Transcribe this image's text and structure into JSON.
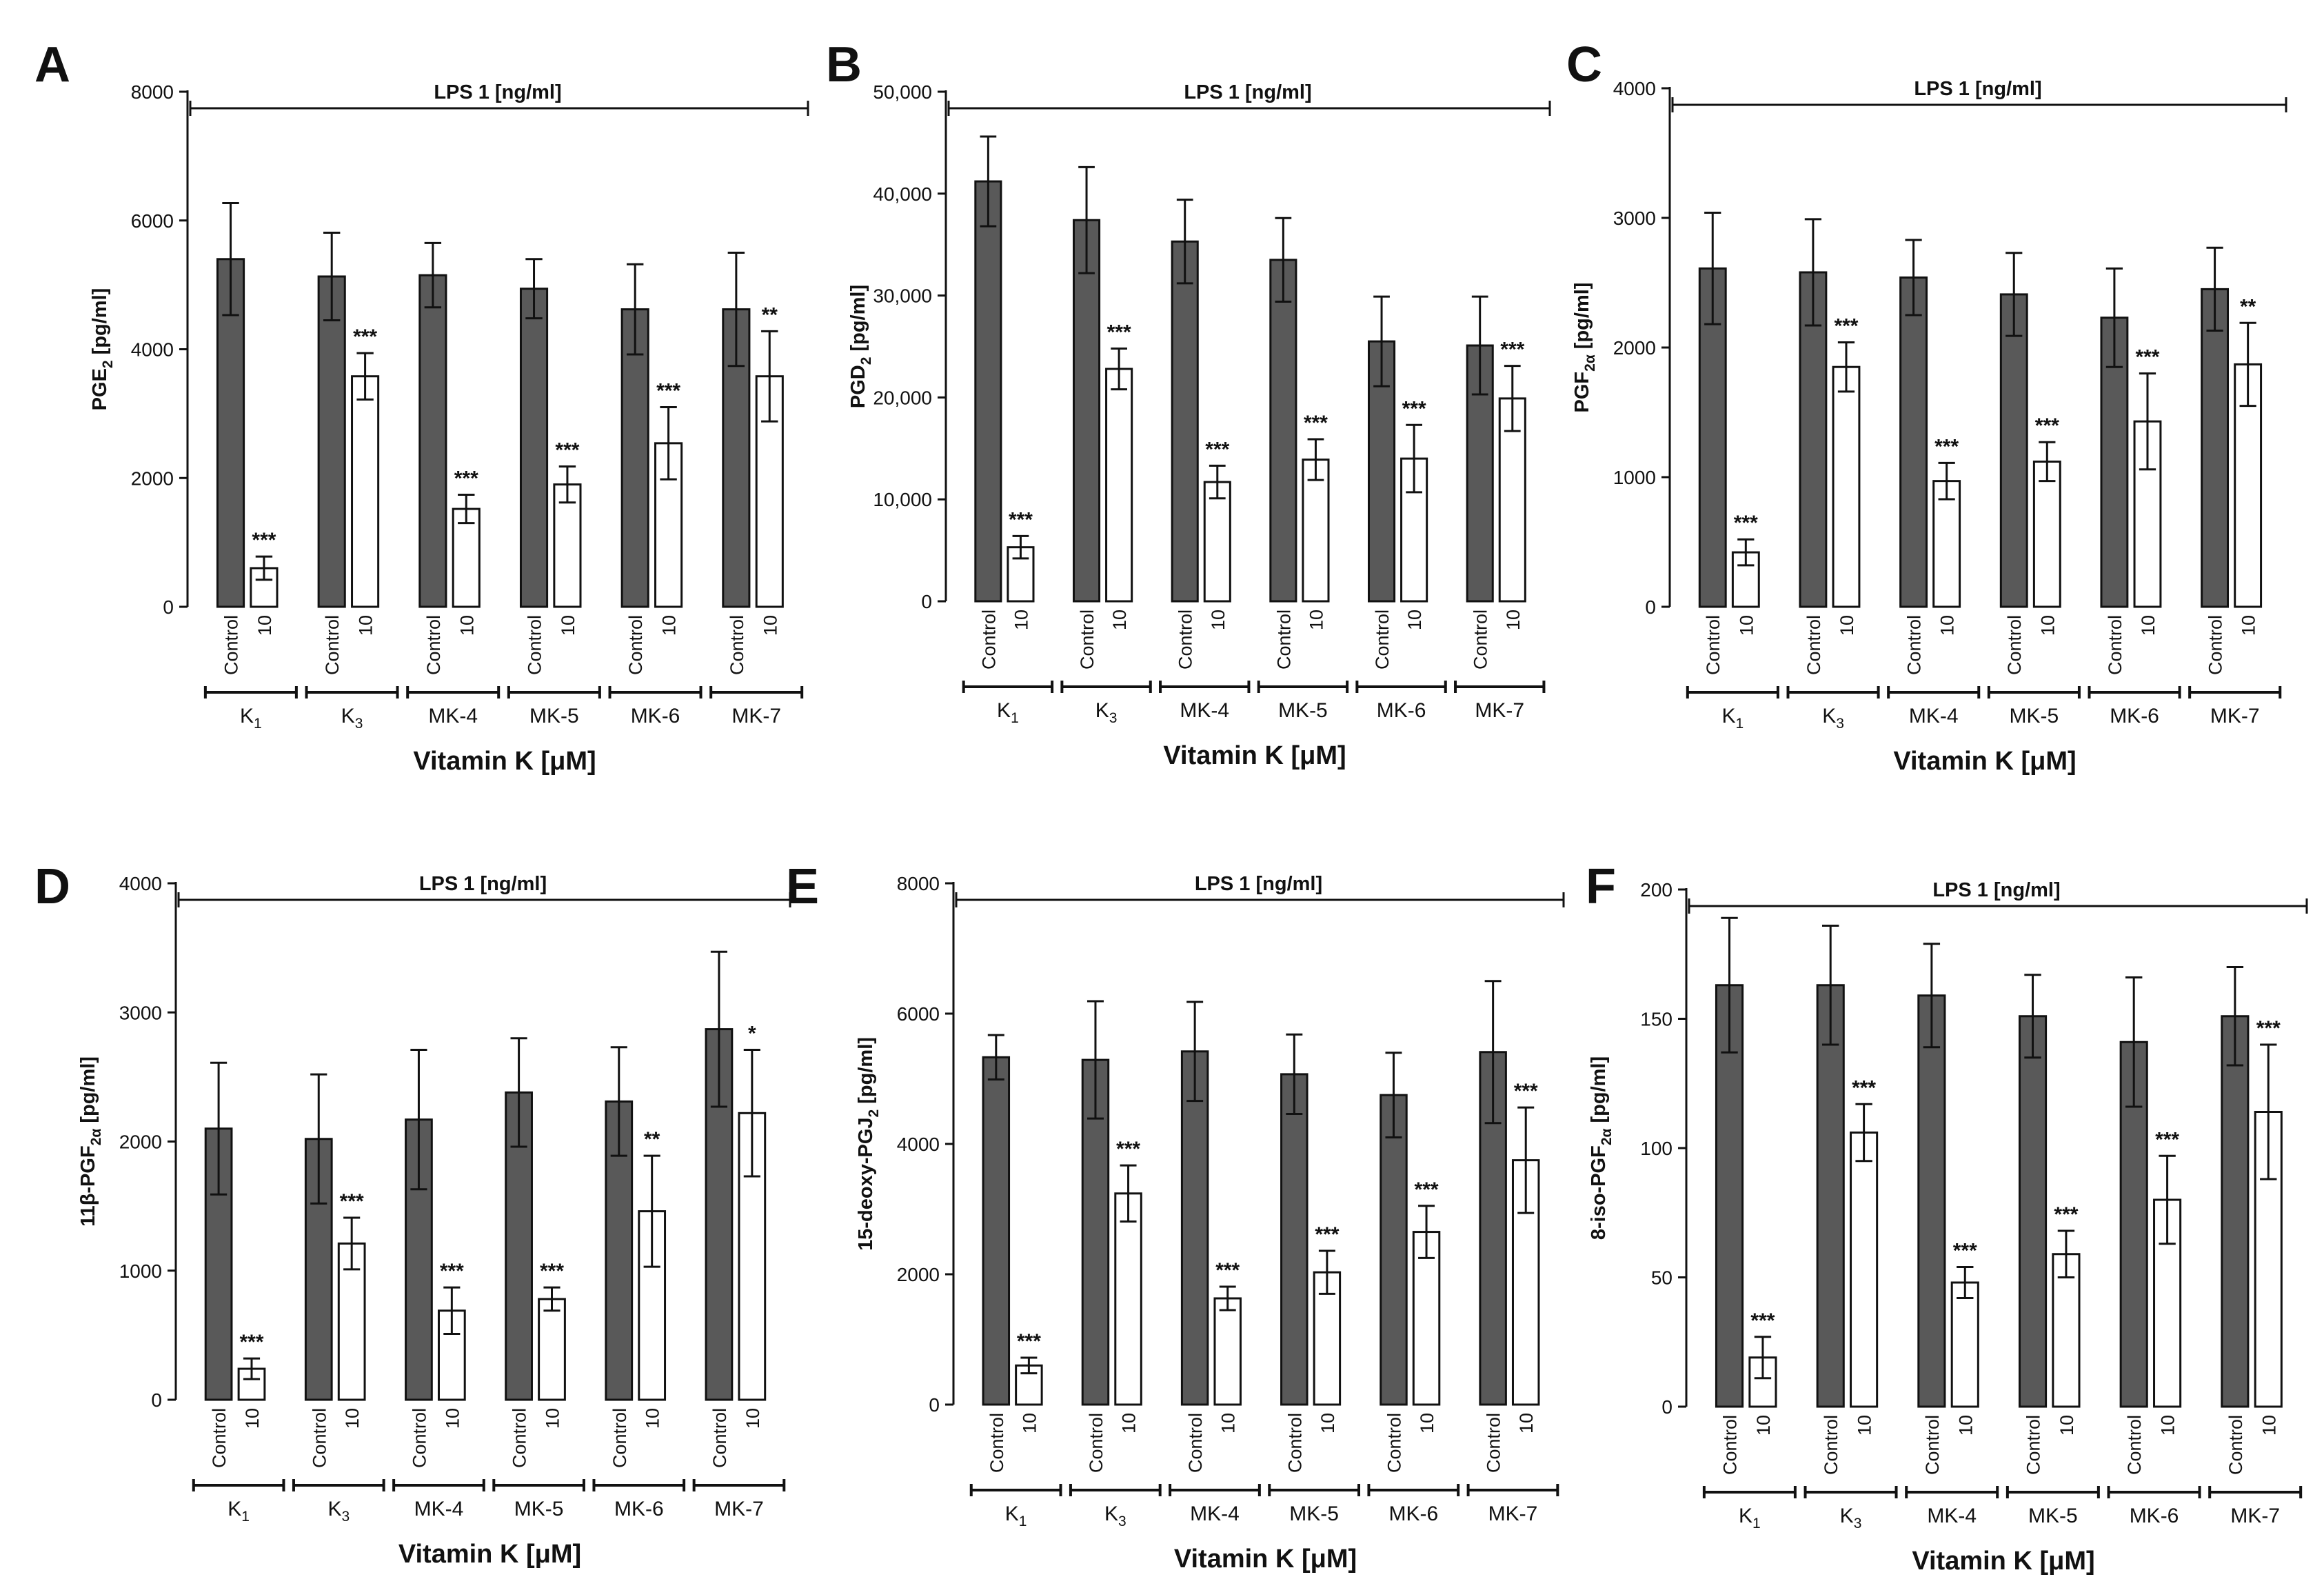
{
  "figure": {
    "categories": [
      "Control",
      "10"
    ],
    "groups": [
      "K",
      "K",
      "MK-4",
      "MK-5",
      "MK-6",
      "MK-7"
    ],
    "group_subscripts": [
      "1",
      "3",
      "",
      "",
      "",
      ""
    ],
    "xlabel": "Vitamin K [μM]",
    "treatment": "LPS 1 [ng/ml]",
    "colors": {
      "control": "#595959",
      "treated": "#ffffff",
      "stroke": "#111111"
    }
  },
  "chart_data": [
    {
      "type": "bar",
      "panel": "A",
      "ylabel_main": "PGE",
      "ylabel_sub": "2",
      "ylabel_tail": " [pg/ml]",
      "ylim": [
        0,
        8000
      ],
      "yticks": [
        "0",
        "2000",
        "4000",
        "6000",
        "8000"
      ],
      "series": [
        {
          "name": "Control",
          "values": [
            5400,
            5130,
            5150,
            4940,
            4620,
            4620
          ],
          "errors": [
            870,
            680,
            500,
            460,
            700,
            880
          ]
        },
        {
          "name": "10",
          "values": [
            600,
            3580,
            1520,
            1900,
            2540,
            3580
          ],
          "errors": [
            180,
            360,
            220,
            280,
            560,
            700
          ]
        }
      ],
      "significance": [
        "***",
        "***",
        "***",
        "***",
        "***",
        "**"
      ]
    },
    {
      "type": "bar",
      "panel": "B",
      "ylabel_main": "PGD",
      "ylabel_sub": "2",
      "ylabel_tail": " [pg/ml]",
      "ylim": [
        0,
        50000
      ],
      "yticks": [
        "0",
        "10,000",
        "20,000",
        "30,000",
        "40,000",
        "50,000"
      ],
      "series": [
        {
          "name": "Control",
          "values": [
            41200,
            37400,
            35300,
            33500,
            25500,
            25100
          ],
          "errors": [
            4400,
            5200,
            4100,
            4100,
            4400,
            4800
          ]
        },
        {
          "name": "10",
          "values": [
            5300,
            22800,
            11700,
            13900,
            14000,
            19900
          ],
          "errors": [
            1100,
            2000,
            1600,
            2000,
            3300,
            3200
          ]
        }
      ],
      "significance": [
        "***",
        "***",
        "***",
        "***",
        "***",
        "***"
      ]
    },
    {
      "type": "bar",
      "panel": "C",
      "ylabel_main": "PGF",
      "ylabel_sub": "2α",
      "ylabel_tail": " [pg/ml]",
      "ylim": [
        0,
        4000
      ],
      "yticks": [
        "0",
        "1000",
        "2000",
        "3000",
        "4000"
      ],
      "series": [
        {
          "name": "Control",
          "values": [
            2610,
            2580,
            2540,
            2410,
            2230,
            2450
          ],
          "errors": [
            430,
            410,
            290,
            320,
            380,
            320
          ]
        },
        {
          "name": "10",
          "values": [
            420,
            1850,
            970,
            1120,
            1430,
            1870
          ],
          "errors": [
            100,
            190,
            140,
            150,
            370,
            320
          ]
        }
      ],
      "significance": [
        "***",
        "***",
        "***",
        "***",
        "***",
        "**"
      ]
    },
    {
      "type": "bar",
      "panel": "D",
      "ylabel_main": "11β-PGF",
      "ylabel_sub": "2α",
      "ylabel_tail": " [pg/ml]",
      "ylim": [
        0,
        4000
      ],
      "yticks": [
        "0",
        "1000",
        "2000",
        "3000",
        "4000"
      ],
      "series": [
        {
          "name": "Control",
          "values": [
            2100,
            2020,
            2170,
            2380,
            2310,
            2870
          ],
          "errors": [
            510,
            500,
            540,
            420,
            420,
            600
          ]
        },
        {
          "name": "10",
          "values": [
            240,
            1210,
            690,
            780,
            1460,
            2220
          ],
          "errors": [
            80,
            200,
            180,
            90,
            430,
            490
          ]
        }
      ],
      "significance": [
        "***",
        "***",
        "***",
        "***",
        "**",
        "*"
      ]
    },
    {
      "type": "bar",
      "panel": "E",
      "ylabel_main": "15-deoxy-PGJ",
      "ylabel_sub": "2",
      "ylabel_tail": " [pg/ml]",
      "ylim": [
        0,
        8000
      ],
      "yticks": [
        "0",
        "2000",
        "4000",
        "6000",
        "8000"
      ],
      "series": [
        {
          "name": "Control",
          "values": [
            5330,
            5290,
            5420,
            5070,
            4750,
            5410
          ],
          "errors": [
            340,
            900,
            760,
            610,
            650,
            1090
          ]
        },
        {
          "name": "10",
          "values": [
            600,
            3240,
            1630,
            2030,
            2650,
            3750
          ],
          "errors": [
            120,
            430,
            180,
            330,
            400,
            810
          ]
        }
      ],
      "significance": [
        "***",
        "***",
        "***",
        "***",
        "***",
        "***"
      ]
    },
    {
      "type": "bar",
      "panel": "F",
      "ylabel_main": "8-iso-PGF",
      "ylabel_sub": "2α",
      "ylabel_tail": " [pg/ml]",
      "ylim": [
        0,
        200
      ],
      "yticks": [
        "0",
        "50",
        "100",
        "150",
        "200"
      ],
      "series": [
        {
          "name": "Control",
          "values": [
            163,
            163,
            159,
            151,
            141,
            151
          ],
          "errors": [
            26,
            23,
            20,
            16,
            25,
            19
          ]
        },
        {
          "name": "10",
          "values": [
            19,
            106,
            48,
            59,
            80,
            114
          ],
          "errors": [
            8,
            11,
            6,
            9,
            17,
            26
          ]
        }
      ],
      "significance": [
        "***",
        "***",
        "***",
        "***",
        "***",
        "***"
      ]
    }
  ]
}
